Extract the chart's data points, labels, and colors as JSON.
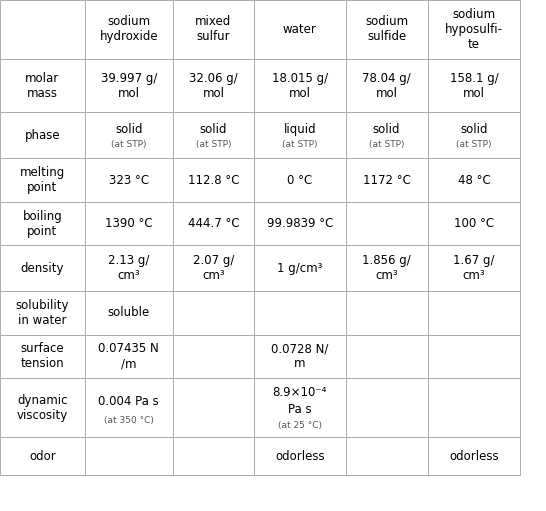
{
  "columns": [
    "",
    "sodium\nhydroxide",
    "mixed\nsulfur",
    "water",
    "sodium\nsulfide",
    "sodium\nhyposulfi-\nte"
  ],
  "rows": [
    {
      "label": "molar\nmass",
      "values": [
        "39.997 g/\nmol",
        "32.06 g/\nmol",
        "18.015 g/\nmol",
        "78.04 g/\nmol",
        "158.1 g/\nmol"
      ]
    },
    {
      "label": "phase",
      "values": [
        "solid\n(at STP)",
        "solid\n(at STP)",
        "liquid\n(at STP)",
        "solid\n(at STP)",
        "solid\n(at STP)"
      ]
    },
    {
      "label": "melting\npoint",
      "values": [
        "323 °C",
        "112.8 °C",
        "0 °C",
        "1172 °C",
        "48 °C"
      ]
    },
    {
      "label": "boiling\npoint",
      "values": [
        "1390 °C",
        "444.7 °C",
        "99.9839 °C",
        "",
        "100 °C"
      ]
    },
    {
      "label": "density",
      "values": [
        "2.13 g/\ncm³",
        "2.07 g/\ncm³",
        "1 g/cm³",
        "1.856 g/\ncm³",
        "1.67 g/\ncm³"
      ]
    },
    {
      "label": "solubility\nin water",
      "values": [
        "soluble",
        "",
        "",
        "",
        ""
      ]
    },
    {
      "label": "surface\ntension",
      "values": [
        "0.07435 N\n/m",
        "",
        "0.0728 N/\nm",
        "",
        ""
      ]
    },
    {
      "label": "dynamic\nviscosity",
      "values": [
        "0.004 Pa s\n(at 350 °C)",
        "",
        "8.9×10⁻⁴\nPa s\n(at 25 °C)",
        "",
        ""
      ]
    },
    {
      "label": "odor",
      "values": [
        "",
        "",
        "odorless",
        "",
        "odorless"
      ]
    }
  ],
  "header_fontsize": 8.5,
  "cell_fontsize": 8.5,
  "label_fontsize": 8.5,
  "bg_color": "#ffffff",
  "grid_color": "#aaaaaa",
  "text_color": "#000000",
  "subtext_color": "#555555"
}
